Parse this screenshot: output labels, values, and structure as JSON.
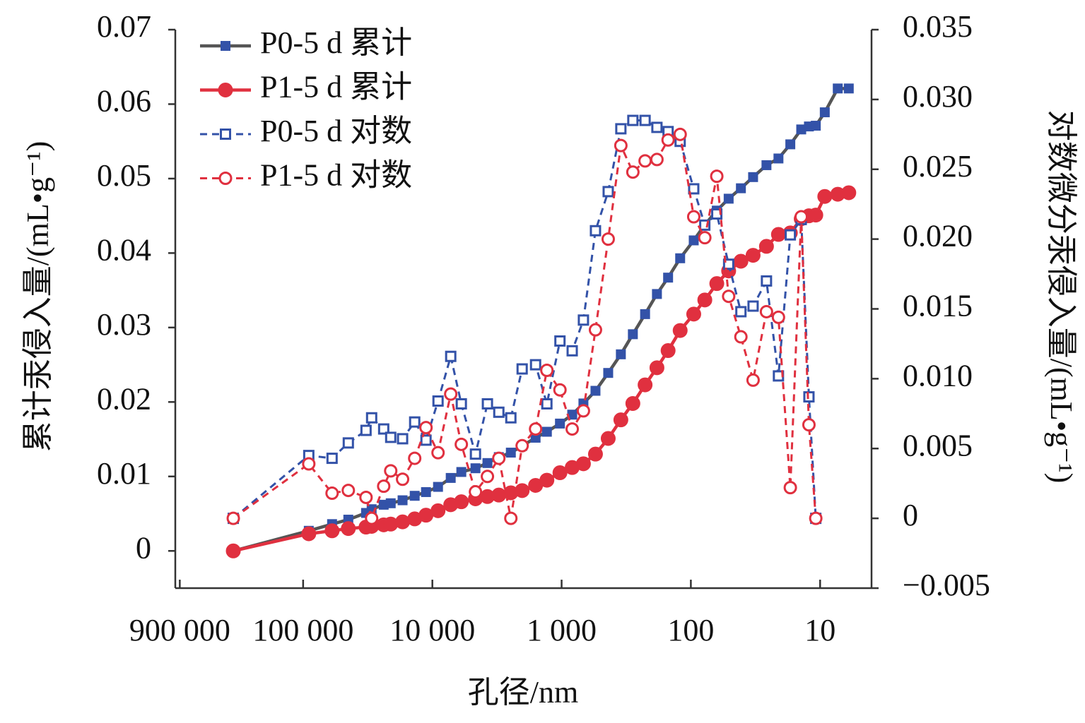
{
  "chart_data": {
    "type": "line",
    "xlabel": "孔径/nm",
    "ylabel": "累计汞侵入量/(mL•g⁻¹)",
    "y2label": "对数微分汞侵入量/(mL•g⁻¹)",
    "x": [
      347000,
      90400,
      59700,
      44700,
      32600,
      29500,
      23800,
      21000,
      17000,
      13700,
      11200,
      9040,
      7210,
      5970,
      4640,
      3750,
      3060,
      2470,
      2020,
      1590,
      1300,
      1030,
      828,
      678,
      547,
      436,
      348,
      281,
      226,
      183,
      150,
      121,
      95,
      78,
      63,
      51,
      41,
      33,
      26,
      21,
      17,
      14,
      12.2,
      10.8,
      9.2,
      7.3,
      6.0
    ],
    "xscale": "log",
    "xreversed": true,
    "xlim": [
      975000,
      4
    ],
    "xticks": [
      {
        "value": 900000,
        "label": "900 000"
      },
      {
        "value": 100000,
        "label": "100 000"
      },
      {
        "value": 10000,
        "label": "10 000"
      },
      {
        "value": 1000,
        "label": "1 000"
      },
      100,
      10
    ],
    "ylim": [
      -0.005,
      0.07
    ],
    "yticks": [
      0,
      0.01,
      0.02,
      0.03,
      0.04,
      0.05,
      0.06,
      0.07
    ],
    "y2lim": [
      -0.005,
      0.035
    ],
    "y2ticks": [
      {
        "value": -0.005,
        "label": "−0.005"
      },
      0,
      0.005,
      {
        "value": 0.01,
        "label": "0.010"
      },
      0.015,
      {
        "value": 0.02,
        "label": "0.020"
      },
      0.025,
      {
        "value": 0.03,
        "label": "0.030"
      },
      0.035
    ],
    "legend": "upper left",
    "series": [
      {
        "name": "P0-5 d 累计",
        "color": "#3352a8",
        "line_color": "#555555",
        "marker": "square",
        "filled": true,
        "dashed": false,
        "values": [
          0,
          0.0027,
          0.0036,
          0.0042,
          0.0051,
          0.0056,
          0.0062,
          0.0064,
          0.0068,
          0.0074,
          0.0079,
          0.0086,
          0.0098,
          0.0106,
          0.0111,
          0.0118,
          0.0126,
          0.0132,
          0.0141,
          0.0152,
          0.016,
          0.0171,
          0.0183,
          0.0198,
          0.0215,
          0.0239,
          0.0264,
          0.0291,
          0.0318,
          0.0345,
          0.0367,
          0.0393,
          0.0417,
          0.0438,
          0.0457,
          0.0473,
          0.0487,
          0.0502,
          0.0518,
          0.0527,
          0.0546,
          0.0566,
          0.057,
          0.0571,
          0.0589,
          0.0621,
          0.0621
        ]
      },
      {
        "name": "P1-5 d 累计",
        "color": "#e0303f",
        "line_color": "#e0303f",
        "marker": "circle",
        "filled": true,
        "dashed": false,
        "values": [
          0,
          0.0023,
          0.0027,
          0.003,
          0.0032,
          0.0033,
          0.0035,
          0.0036,
          0.0039,
          0.0043,
          0.0048,
          0.0054,
          0.0062,
          0.0066,
          0.007,
          0.0073,
          0.0075,
          0.0078,
          0.0081,
          0.0088,
          0.0095,
          0.0105,
          0.0112,
          0.0117,
          0.013,
          0.0151,
          0.0176,
          0.0198,
          0.0223,
          0.0246,
          0.0269,
          0.0296,
          0.0318,
          0.0337,
          0.0359,
          0.0376,
          0.0389,
          0.0397,
          0.0409,
          0.0425,
          0.0427,
          0.0446,
          0.045,
          0.0451,
          0.0476,
          0.0479,
          0.0481
        ]
      },
      {
        "name": "P0-5 d 对数",
        "color": "#3352a8",
        "line_color": "#3352a8",
        "marker": "square",
        "filled": false,
        "dashed": true,
        "axis": "y2",
        "values": [
          0,
          0.0045,
          0.0043,
          0.0054,
          0.0063,
          0.0072,
          0.0064,
          0.0058,
          0.0057,
          0.0069,
          0.0056,
          0.0084,
          0.0116,
          0.0082,
          0.0046,
          0.0082,
          0.0076,
          0.0072,
          0.0107,
          0.011,
          0.0082,
          0.0127,
          0.012,
          0.0142,
          0.0206,
          0.0234,
          0.0279,
          0.0285,
          0.0285,
          0.028,
          0.0277,
          0.027,
          0.0236,
          0.021,
          0.0218,
          0.0182,
          0.0148,
          0.0152,
          0.017,
          0.0102,
          0.0203,
          0.0214,
          0.0087,
          0,
          null,
          null,
          null
        ]
      },
      {
        "name": "P1-5 d 对数",
        "color": "#e0303f",
        "line_color": "#e0303f",
        "marker": "circle",
        "filled": false,
        "dashed": true,
        "axis": "y2",
        "values": [
          0,
          0.0039,
          0.0018,
          0.002,
          0.0015,
          0,
          0.0023,
          0.0034,
          0.0028,
          0.0043,
          0.0065,
          0.0047,
          0.0089,
          0.0053,
          0.0019,
          0.003,
          0.0043,
          0,
          0.0052,
          0.0064,
          0.0106,
          0.0092,
          0.0064,
          0.0077,
          0.0135,
          0.02,
          0.0267,
          0.0248,
          0.0256,
          0.0257,
          0.0271,
          0.0275,
          0.0216,
          0.0201,
          0.0245,
          0.0159,
          0.013,
          0.0099,
          0.0148,
          0.0144,
          0.0022,
          0.0216,
          0.0067,
          0,
          null,
          null,
          null
        ]
      }
    ]
  }
}
